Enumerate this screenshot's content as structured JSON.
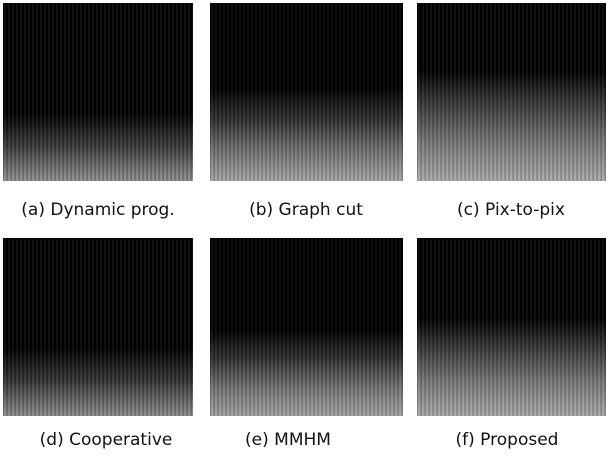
{
  "figure": {
    "panels": [
      {
        "caption": "(a) Dynamic prog."
      },
      {
        "caption": "(b) Graph cut"
      },
      {
        "caption": "(c) Pix-to-pix"
      },
      {
        "caption": "(d) Cooperative"
      },
      {
        "caption": "(e) MMHM"
      },
      {
        "caption": "(f) Proposed"
      }
    ]
  }
}
